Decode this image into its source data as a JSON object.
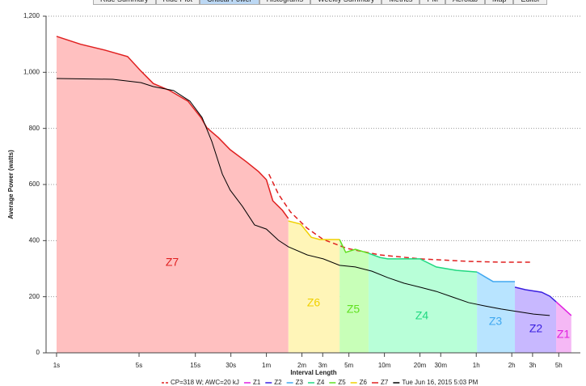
{
  "tabs": [
    {
      "label": "Ride Summary",
      "selected": false
    },
    {
      "label": "Ride Plot",
      "selected": false
    },
    {
      "label": "Critical Power",
      "selected": true
    },
    {
      "label": "Histograms",
      "selected": false
    },
    {
      "label": "Weekly Summary",
      "selected": false
    },
    {
      "label": "Metrics",
      "selected": false
    },
    {
      "label": "PM",
      "selected": false
    },
    {
      "label": "Aerolab",
      "selected": false
    },
    {
      "label": "Map",
      "selected": false
    },
    {
      "label": "Editor",
      "selected": false
    }
  ],
  "chart_data": {
    "type": "area",
    "x_label": "Interval Length",
    "y_label": "Average Power (watts)",
    "x_scale": "log",
    "grid": true,
    "xlim": [
      0.815,
      27430
    ],
    "xticks": [
      {
        "value": 1,
        "label": "1s"
      },
      {
        "value": 5,
        "label": "5s"
      },
      {
        "value": 15,
        "label": "15s"
      },
      {
        "value": 30,
        "label": "30s"
      },
      {
        "value": 60,
        "label": "1m"
      },
      {
        "value": 120,
        "label": "2m"
      },
      {
        "value": 180,
        "label": "3m"
      },
      {
        "value": 300,
        "label": "5m"
      },
      {
        "value": 600,
        "label": "10m"
      },
      {
        "value": 1200,
        "label": "20m"
      },
      {
        "value": 1800,
        "label": "30m"
      },
      {
        "value": 3600,
        "label": "1h"
      },
      {
        "value": 7200,
        "label": "2h"
      },
      {
        "value": 10800,
        "label": "3h"
      },
      {
        "value": 18000,
        "label": "5h"
      }
    ],
    "ylim": [
      0,
      1200
    ],
    "yticks": [
      0,
      200,
      400,
      600,
      800,
      {
        "value": 1000,
        "label": "1,000"
      },
      {
        "value": 1200,
        "label": "1,200"
      }
    ],
    "series": [
      {
        "name": "CP=318 W; AWC=20 kJ",
        "color": "#e02020",
        "style": "dashed",
        "x": [
          63,
          76,
          96,
          133,
          182,
          290,
          550,
          1200,
          3100,
          5850,
          10700
        ],
        "values": [
          637,
          565,
          502,
          444,
          404,
          372,
          349,
          335,
          326,
          323,
          323
        ]
      },
      {
        "name": "Z1",
        "color": "#e020e0",
        "fill": "#f5b8f5",
        "style": "zone",
        "x": [
          17100,
          23000
        ],
        "values": [
          182,
          133
        ]
      },
      {
        "name": "Z2",
        "color": "#3a20e0",
        "fill": "#c8b8ff",
        "style": "zone",
        "x": [
          7650,
          9400,
          12900,
          15100,
          17100
        ],
        "values": [
          234,
          225,
          216,
          202,
          182
        ]
      },
      {
        "name": "Z3",
        "color": "#40a8f0",
        "fill": "#b8e4ff",
        "style": "zone",
        "x": [
          3650,
          4270,
          5000,
          7650
        ],
        "values": [
          288,
          271,
          254,
          254
        ]
      },
      {
        "name": "Z4",
        "color": "#20d880",
        "fill": "#b8ffd8",
        "style": "zone",
        "x": [
          440,
          550,
          640,
          1200,
          1650,
          2450,
          3650
        ],
        "values": [
          355,
          340,
          335,
          335,
          306,
          294,
          288
        ]
      },
      {
        "name": "Z5",
        "color": "#60e020",
        "fill": "#c8ffb8",
        "style": "zone",
        "x": [
          250,
          282,
          340,
          440
        ],
        "values": [
          404,
          358,
          369,
          355
        ]
      },
      {
        "name": "Z6",
        "color": "#f0d000",
        "fill": "#fff5b8",
        "style": "zone",
        "x": [
          92,
          117,
          144,
          170,
          250
        ],
        "values": [
          470,
          459,
          412,
          404,
          404
        ]
      },
      {
        "name": "Z7",
        "color": "#e02020",
        "fill": "#ffc0c0",
        "style": "zone",
        "x": [
          1,
          1.6,
          2.57,
          4,
          5.2,
          6.6,
          9.1,
          13,
          16.7,
          18.8,
          23.5,
          29.6,
          40.6,
          51.5,
          60,
          68,
          82,
          92
        ],
        "values": [
          1128,
          1100,
          1079,
          1056,
          1004,
          960,
          935,
          897,
          839,
          802,
          767,
          724,
          681,
          646,
          617,
          542,
          508,
          479
        ]
      },
      {
        "name": "Tue Jun 16, 2015 5:03 PM",
        "color": "#000000",
        "style": "solid",
        "x": [
          1,
          3,
          5.2,
          6.6,
          9.8,
          13.5,
          17.1,
          20.7,
          25.4,
          29.6,
          37.6,
          47.6,
          60,
          76,
          92,
          133,
          182,
          250,
          340,
          470,
          640,
          880,
          1200,
          1650,
          2260,
          3100,
          4270,
          5850,
          8020,
          11000,
          15100
        ],
        "values": [
          978,
          975,
          963,
          949,
          935,
          897,
          839,
          753,
          637,
          580,
          522,
          456,
          441,
          401,
          378,
          349,
          335,
          312,
          306,
          291,
          268,
          248,
          234,
          219,
          199,
          179,
          167,
          156,
          147,
          138,
          133
        ]
      }
    ]
  }
}
